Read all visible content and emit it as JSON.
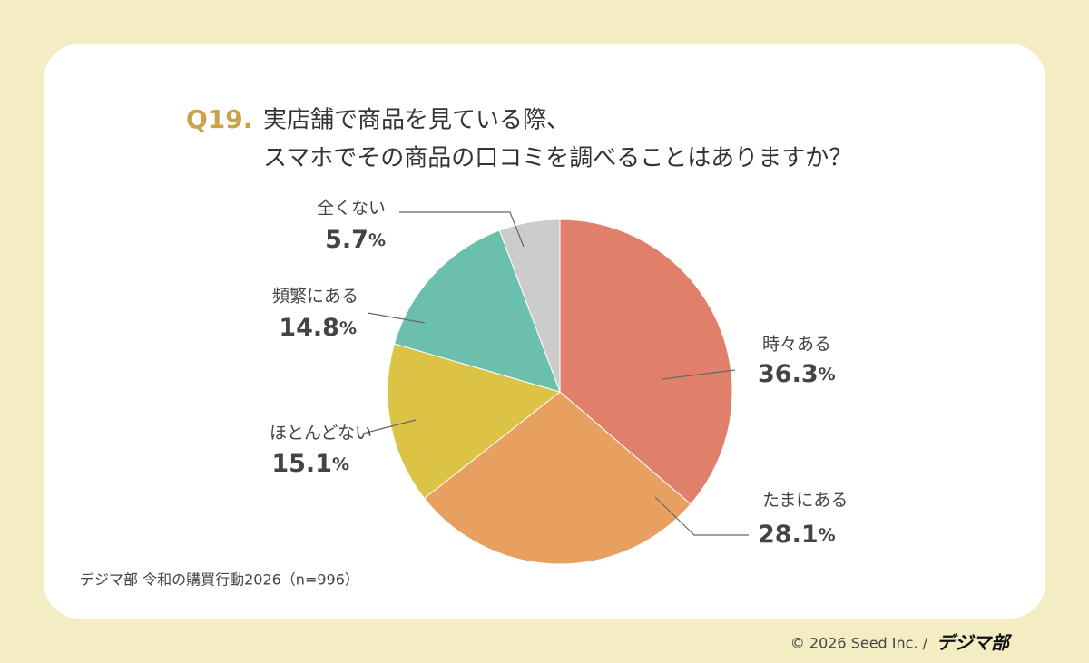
{
  "chart_data": {
    "type": "pie",
    "title_number": "Q19.",
    "title_lines": [
      "実店舗で商品を見ている際、",
      "スマホでその商品の口コミを調べることはありますか？"
    ],
    "categories": [
      "時々ある",
      "たまにある",
      "ほとんどない",
      "頻繁にある",
      "全くない"
    ],
    "values": [
      36.3,
      28.1,
      15.1,
      14.8,
      5.7
    ],
    "value_labels": [
      "36.3%",
      "28.1%",
      "15.1%",
      "14.8%",
      "5.7%"
    ],
    "colors": [
      "#e0806a",
      "#e8a060",
      "#dbc445",
      "#6bbfad",
      "#cccccc"
    ],
    "source": "デジマ部 令和の購買行動2026（n=996）"
  },
  "footer": {
    "copyright": "© 2026 Seed Inc. /",
    "logo": "デジマ部"
  }
}
